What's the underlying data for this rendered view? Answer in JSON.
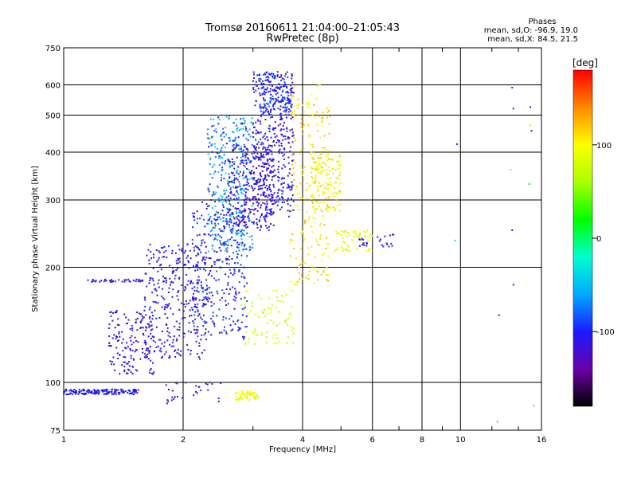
{
  "chart_data": {
    "type": "scatter",
    "title": "Tromsø 20160611 21:04:00–21:05:43",
    "subtitle": "RwPretec (8p)",
    "xlabel": "Frequency [MHz]",
    "ylabel": "Stationary phase Virtual Height [km]",
    "x_scale": "log",
    "y_scale": "log",
    "xlim": [
      1,
      16
    ],
    "ylim": [
      75,
      750
    ],
    "x_ticks": [
      1,
      2,
      4,
      6,
      8,
      10,
      16
    ],
    "y_ticks": [
      75,
      100,
      200,
      300,
      400,
      500,
      600,
      750
    ],
    "grid": true,
    "stats": {
      "header": "Phases",
      "line1": "mean, sd,O: -96.9, 19.0",
      "line2": "mean, sd,X:  84.5, 21.5"
    },
    "colorbar": {
      "label": "[deg]",
      "range": [
        -180,
        180
      ],
      "ticks": [
        100,
        0,
        -100
      ],
      "colors": [
        "#000000",
        "#6a00a8",
        "#1a1aff",
        "#00aaff",
        "#00ffcc",
        "#00ff00",
        "#aaff00",
        "#ffff00",
        "#ff8800",
        "#ff0000"
      ]
    },
    "clusters": [
      {
        "f": [
          1.0,
          1.55
        ],
        "h": [
          93,
          96
        ],
        "n": 150,
        "phase": [
          -110,
          -95
        ]
      },
      {
        "f": [
          1.15,
          1.6
        ],
        "h": [
          183,
          186
        ],
        "n": 40,
        "phase": [
          -115,
          -100
        ]
      },
      {
        "f": [
          1.3,
          1.7
        ],
        "h": [
          105,
          155
        ],
        "n": 160,
        "phase": [
          -125,
          -95
        ]
      },
      {
        "f": [
          1.6,
          2.3
        ],
        "h": [
          115,
          230
        ],
        "n": 320,
        "phase": [
          -125,
          -90
        ]
      },
      {
        "f": [
          2.1,
          2.9
        ],
        "h": [
          130,
          300
        ],
        "n": 300,
        "phase": [
          -120,
          -80
        ]
      },
      {
        "f": [
          2.3,
          3.0
        ],
        "h": [
          220,
          500
        ],
        "n": 380,
        "phase": [
          -110,
          -35
        ]
      },
      {
        "f": [
          2.6,
          3.4
        ],
        "h": [
          250,
          420
        ],
        "n": 260,
        "phase": [
          -130,
          -100
        ]
      },
      {
        "f": [
          3.0,
          3.8
        ],
        "h": [
          270,
          650
        ],
        "n": 420,
        "phase": [
          -125,
          -90
        ]
      },
      {
        "f": [
          3.1,
          3.7
        ],
        "h": [
          500,
          640
        ],
        "n": 120,
        "phase": [
          -115,
          -75
        ]
      },
      {
        "f": [
          3.7,
          4.7
        ],
        "h": [
          180,
          600
        ],
        "n": 230,
        "phase": [
          90,
          130
        ]
      },
      {
        "f": [
          4.2,
          5.0
        ],
        "h": [
          280,
          400
        ],
        "n": 140,
        "phase": [
          80,
          120
        ]
      },
      {
        "f": [
          4.8,
          6.0
        ],
        "h": [
          220,
          250
        ],
        "n": 60,
        "phase": [
          70,
          110
        ]
      },
      {
        "f": [
          5.5,
          6.8
        ],
        "h": [
          225,
          245
        ],
        "n": 25,
        "phase": [
          -115,
          -95
        ]
      },
      {
        "f": [
          2.8,
          3.8
        ],
        "h": [
          125,
          175
        ],
        "n": 80,
        "phase": [
          60,
          110
        ]
      },
      {
        "f": [
          2.7,
          3.1
        ],
        "h": [
          90,
          95
        ],
        "n": 60,
        "phase": [
          80,
          110
        ]
      },
      {
        "f": [
          1.8,
          2.5
        ],
        "h": [
          88,
          100
        ],
        "n": 30,
        "phase": [
          -130,
          -95
        ]
      }
    ],
    "points": [
      {
        "f": 9.8,
        "h": 420,
        "phase": -110
      },
      {
        "f": 9.7,
        "h": 235,
        "phase": 0
      },
      {
        "f": 13.5,
        "h": 590,
        "phase": -110
      },
      {
        "f": 13.6,
        "h": 520,
        "phase": -120
      },
      {
        "f": 15.0,
        "h": 525,
        "phase": -110
      },
      {
        "f": 15.1,
        "h": 455,
        "phase": -130
      },
      {
        "f": 14.9,
        "h": 330,
        "phase": 20
      },
      {
        "f": 13.4,
        "h": 360,
        "phase": 120
      },
      {
        "f": 13.5,
        "h": 250,
        "phase": -100
      },
      {
        "f": 13.6,
        "h": 180,
        "phase": -110
      },
      {
        "f": 12.5,
        "h": 150,
        "phase": -120
      },
      {
        "f": 12.4,
        "h": 79,
        "phase": 140
      },
      {
        "f": 15.3,
        "h": 87,
        "phase": 130
      },
      {
        "f": 15.0,
        "h": 470,
        "phase": 60
      }
    ]
  }
}
